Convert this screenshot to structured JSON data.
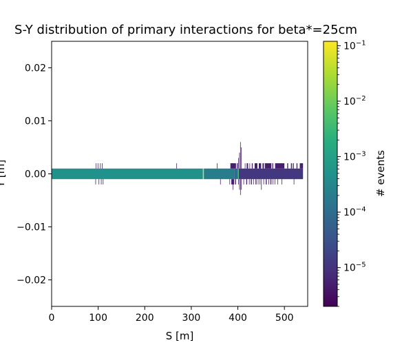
{
  "chart_data": {
    "type": "heatmap",
    "title": "S-Y distribution of primary interactions for beta*=25cm",
    "xlabel": "S [m]",
    "ylabel": "Y [m]",
    "xlim": [
      0,
      550
    ],
    "ylim": [
      -0.025,
      0.025
    ],
    "xticks": [
      0,
      100,
      200,
      300,
      400,
      500
    ],
    "xtick_labels": [
      "0",
      "100",
      "200",
      "300",
      "400",
      "500"
    ],
    "yticks": [
      -0.02,
      -0.01,
      0.0,
      0.01,
      0.02
    ],
    "ytick_labels": [
      "−0.02",
      "−0.01",
      "0.00",
      "0.01",
      "0.02"
    ],
    "grid": false,
    "colormap": "viridis",
    "colorbar": {
      "label": "# events",
      "scale": "log",
      "range": [
        2e-06,
        0.12
      ],
      "ticks": [
        1e-05,
        0.0001,
        0.001,
        0.01,
        0.1
      ],
      "tick_labels": [
        {
          "base": "10",
          "exp": "−5"
        },
        {
          "base": "10",
          "exp": "−4"
        },
        {
          "base": "10",
          "exp": "−3"
        },
        {
          "base": "10",
          "exp": "−2"
        },
        {
          "base": "10",
          "exp": "−1"
        }
      ]
    },
    "cells": [
      {
        "s0": 0,
        "s1": 325,
        "y0": -0.001,
        "y1": 0.001,
        "value": 0.0005
      },
      {
        "s0": 325,
        "s1": 327,
        "y0": -0.001,
        "y1": 0.001,
        "value": 0.05
      },
      {
        "s0": 327,
        "s1": 392,
        "y0": -0.001,
        "y1": 0.001,
        "value": 0.0002
      },
      {
        "s0": 392,
        "s1": 400,
        "y0": -0.001,
        "y1": 0.001,
        "value": 0.0001
      },
      {
        "s0": 400,
        "s1": 402,
        "y0": -0.001,
        "y1": 0.001,
        "value": 0.004
      },
      {
        "s0": 402,
        "s1": 540,
        "y0": -0.001,
        "y1": 0.001,
        "value": 1.2e-05
      },
      {
        "s0": 95,
        "s1": 96,
        "y0": 0.001,
        "y1": 0.002,
        "value": 5e-06
      },
      {
        "s0": 99,
        "s1": 100,
        "y0": 0.001,
        "y1": 0.002,
        "value": 5e-06
      },
      {
        "s0": 104,
        "s1": 105,
        "y0": 0.001,
        "y1": 0.002,
        "value": 5e-06
      },
      {
        "s0": 108,
        "s1": 109,
        "y0": 0.001,
        "y1": 0.002,
        "value": 5e-06
      },
      {
        "s0": 94,
        "s1": 95,
        "y0": -0.002,
        "y1": -0.001,
        "value": 5e-06
      },
      {
        "s0": 101,
        "s1": 102,
        "y0": -0.002,
        "y1": -0.001,
        "value": 5e-06
      },
      {
        "s0": 106,
        "s1": 107,
        "y0": -0.002,
        "y1": -0.001,
        "value": 5e-06
      },
      {
        "s0": 110,
        "s1": 111,
        "y0": -0.002,
        "y1": -0.001,
        "value": 5e-06
      },
      {
        "s0": 268,
        "s1": 269,
        "y0": 0.001,
        "y1": 0.002,
        "value": 5e-06
      },
      {
        "s0": 355,
        "s1": 356,
        "y0": 0.001,
        "y1": 0.002,
        "value": 5e-06
      },
      {
        "s0": 362,
        "s1": 363,
        "y0": -0.002,
        "y1": -0.001,
        "value": 5e-06
      },
      {
        "s0": 382,
        "s1": 383,
        "y0": -0.002,
        "y1": -0.001,
        "value": 5e-06
      },
      {
        "s0": 384,
        "s1": 396,
        "y0": 0.001,
        "y1": 0.002,
        "value": 5e-06
      },
      {
        "s0": 386,
        "s1": 392,
        "y0": -0.002,
        "y1": -0.001,
        "value": 5e-06
      },
      {
        "s0": 389,
        "s1": 390,
        "y0": -0.003,
        "y1": -0.002,
        "value": 5e-06
      },
      {
        "s0": 394,
        "s1": 396,
        "y0": -0.002,
        "y1": -0.001,
        "value": 5e-06
      },
      {
        "s0": 398,
        "s1": 400,
        "y0": 0.001,
        "y1": 0.002,
        "value": 5e-06
      },
      {
        "s0": 401,
        "s1": 402,
        "y0": 0.001,
        "y1": 0.003,
        "value": 5e-06
      },
      {
        "s0": 403,
        "s1": 404,
        "y0": 0.001,
        "y1": 0.004,
        "value": 5e-06
      },
      {
        "s0": 405,
        "s1": 406,
        "y0": 0.001,
        "y1": 0.006,
        "value": 5e-06
      },
      {
        "s0": 407,
        "s1": 408,
        "y0": 0.001,
        "y1": 0.005,
        "value": 5e-06
      },
      {
        "s0": 401,
        "s1": 402,
        "y0": -0.002,
        "y1": -0.001,
        "value": 5e-06
      },
      {
        "s0": 403,
        "s1": 404,
        "y0": -0.003,
        "y1": -0.001,
        "value": 5e-06
      },
      {
        "s0": 405,
        "s1": 406,
        "y0": -0.004,
        "y1": -0.001,
        "value": 5e-06
      },
      {
        "s0": 407,
        "s1": 408,
        "y0": -0.003,
        "y1": -0.001,
        "value": 5e-06
      },
      {
        "s0": 415,
        "s1": 416,
        "y0": 0.001,
        "y1": 0.002,
        "value": 5e-06
      },
      {
        "s0": 419,
        "s1": 422,
        "y0": 0.001,
        "y1": 0.002,
        "value": 5e-06
      },
      {
        "s0": 425,
        "s1": 426,
        "y0": 0.001,
        "y1": 0.002,
        "value": 5e-06
      },
      {
        "s0": 430,
        "s1": 432,
        "y0": 0.001,
        "y1": 0.002,
        "value": 5e-06
      },
      {
        "s0": 436,
        "s1": 442,
        "y0": 0.001,
        "y1": 0.002,
        "value": 5e-06
      },
      {
        "s0": 445,
        "s1": 450,
        "y0": 0.001,
        "y1": 0.002,
        "value": 5e-06
      },
      {
        "s0": 453,
        "s1": 456,
        "y0": 0.001,
        "y1": 0.002,
        "value": 5e-06
      },
      {
        "s0": 458,
        "s1": 472,
        "y0": 0.001,
        "y1": 0.002,
        "value": 5e-06
      },
      {
        "s0": 474,
        "s1": 476,
        "y0": 0.001,
        "y1": 0.002,
        "value": 5e-06
      },
      {
        "s0": 412,
        "s1": 413,
        "y0": -0.002,
        "y1": -0.001,
        "value": 5e-06
      },
      {
        "s0": 418,
        "s1": 420,
        "y0": -0.002,
        "y1": -0.001,
        "value": 5e-06
      },
      {
        "s0": 424,
        "s1": 425,
        "y0": -0.002,
        "y1": -0.001,
        "value": 5e-06
      },
      {
        "s0": 428,
        "s1": 430,
        "y0": -0.002,
        "y1": -0.001,
        "value": 5e-06
      },
      {
        "s0": 433,
        "s1": 434,
        "y0": -0.002,
        "y1": -0.001,
        "value": 5e-06
      },
      {
        "s0": 438,
        "s1": 440,
        "y0": -0.002,
        "y1": -0.001,
        "value": 5e-06
      },
      {
        "s0": 443,
        "s1": 444,
        "y0": -0.002,
        "y1": -0.001,
        "value": 5e-06
      },
      {
        "s0": 447,
        "s1": 448,
        "y0": -0.002,
        "y1": -0.001,
        "value": 5e-06
      },
      {
        "s0": 450,
        "s1": 451,
        "y0": -0.003,
        "y1": -0.001,
        "value": 5e-06
      },
      {
        "s0": 455,
        "s1": 456,
        "y0": -0.002,
        "y1": -0.001,
        "value": 5e-06
      },
      {
        "s0": 460,
        "s1": 462,
        "y0": -0.002,
        "y1": -0.001,
        "value": 5e-06
      },
      {
        "s0": 466,
        "s1": 467,
        "y0": -0.002,
        "y1": -0.001,
        "value": 5e-06
      },
      {
        "s0": 470,
        "s1": 472,
        "y0": -0.002,
        "y1": -0.001,
        "value": 5e-06
      },
      {
        "s0": 475,
        "s1": 476,
        "y0": -0.002,
        "y1": -0.001,
        "value": 5e-06
      },
      {
        "s0": 479,
        "s1": 480,
        "y0": -0.002,
        "y1": -0.001,
        "value": 5e-06
      },
      {
        "s0": 485,
        "s1": 486,
        "y0": -0.002,
        "y1": -0.001,
        "value": 5e-06
      },
      {
        "s0": 494,
        "s1": 495,
        "y0": -0.002,
        "y1": -0.001,
        "value": 5e-06
      },
      {
        "s0": 520,
        "s1": 521,
        "y0": -0.002,
        "y1": -0.001,
        "value": 5e-06
      },
      {
        "s0": 480,
        "s1": 500,
        "y0": 0.001,
        "y1": 0.002,
        "value": 5e-06
      },
      {
        "s0": 506,
        "s1": 508,
        "y0": 0.001,
        "y1": 0.002,
        "value": 5e-06
      },
      {
        "s0": 514,
        "s1": 516,
        "y0": 0.001,
        "y1": 0.002,
        "value": 5e-06
      },
      {
        "s0": 518,
        "s1": 520,
        "y0": 0.001,
        "y1": 0.002,
        "value": 5e-06
      },
      {
        "s0": 526,
        "s1": 528,
        "y0": 0.001,
        "y1": 0.002,
        "value": 5e-06
      },
      {
        "s0": 533,
        "s1": 540,
        "y0": 0.001,
        "y1": 0.002,
        "value": 5e-06
      }
    ]
  }
}
